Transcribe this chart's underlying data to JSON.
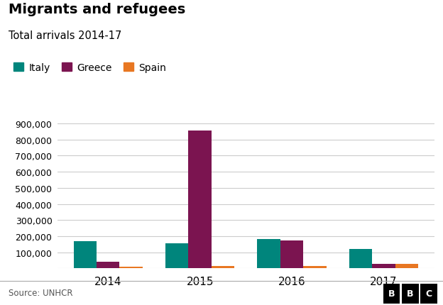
{
  "title": "Migrants and refugees",
  "subtitle": "Total arrivals 2014-17",
  "years": [
    2014,
    2015,
    2016,
    2017
  ],
  "series": {
    "Italy": [
      170100,
      153842,
      181436,
      119369
    ],
    "Greece": [
      41056,
      856723,
      173450,
      29718
    ],
    "Spain": [
      10000,
      15000,
      14900,
      28000
    ]
  },
  "colors": {
    "Italy": "#00857c",
    "Greece": "#7b1450",
    "Spain": "#e87722"
  },
  "ylim": [
    0,
    950000
  ],
  "yticks": [
    0,
    100000,
    200000,
    300000,
    400000,
    500000,
    600000,
    700000,
    800000,
    900000
  ],
  "source": "Source: UNHCR",
  "bg_color": "#ffffff",
  "grid_color": "#cccccc",
  "bar_width": 0.25
}
